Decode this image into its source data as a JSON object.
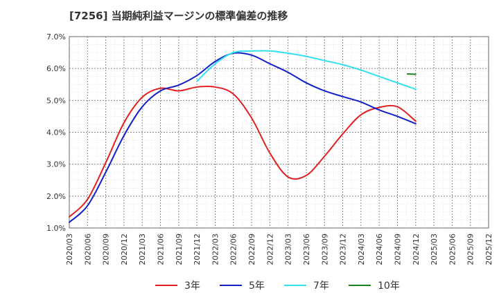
{
  "chart_data": {
    "type": "line",
    "title": "[7256]  当期純利益マージンの標準偏差の推移",
    "xlabel": "",
    "ylabel": "",
    "ylim": [
      1.0,
      7.0
    ],
    "y_ticks": [
      "1.0%",
      "2.0%",
      "3.0%",
      "4.0%",
      "5.0%",
      "6.0%",
      "7.0%"
    ],
    "y_tick_values": [
      1.0,
      2.0,
      3.0,
      4.0,
      5.0,
      6.0,
      7.0
    ],
    "categories": [
      "2020/03",
      "2020/06",
      "2020/09",
      "2020/12",
      "2021/03",
      "2021/06",
      "2021/09",
      "2021/12",
      "2022/03",
      "2022/06",
      "2022/09",
      "2022/12",
      "2023/03",
      "2023/06",
      "2023/09",
      "2023/12",
      "2024/03",
      "2024/06",
      "2024/09",
      "2024/12",
      "2025/03",
      "2025/06",
      "2025/09",
      "2025/12"
    ],
    "grid": true,
    "legend_position": "bottom",
    "series": [
      {
        "name": "3年",
        "color": "#e02020",
        "values": [
          1.35,
          1.9,
          3.05,
          4.3,
          5.1,
          5.38,
          5.3,
          5.42,
          5.42,
          5.2,
          4.45,
          3.35,
          2.6,
          2.65,
          3.25,
          3.95,
          4.55,
          4.78,
          4.8,
          4.35,
          null,
          null,
          null,
          null
        ]
      },
      {
        "name": "5年",
        "color": "#1020c8",
        "values": [
          1.18,
          1.7,
          2.75,
          3.9,
          4.8,
          5.3,
          5.48,
          5.78,
          6.22,
          6.48,
          6.42,
          6.15,
          5.88,
          5.55,
          5.3,
          5.12,
          4.95,
          4.7,
          4.5,
          4.27,
          null,
          null,
          null,
          null
        ]
      },
      {
        "name": "7年",
        "color": "#30e0f0",
        "values": [
          null,
          null,
          null,
          null,
          null,
          null,
          null,
          5.6,
          6.15,
          6.5,
          6.55,
          6.55,
          6.48,
          6.38,
          6.25,
          6.12,
          5.95,
          5.75,
          5.55,
          5.35,
          null,
          null,
          null,
          null
        ]
      },
      {
        "name": "10年",
        "color": "#208020",
        "values": [
          null,
          null,
          null,
          null,
          null,
          null,
          null,
          null,
          null,
          null,
          null,
          null,
          null,
          null,
          null,
          null,
          null,
          null,
          null,
          5.82,
          null,
          null,
          null,
          null
        ]
      }
    ]
  }
}
